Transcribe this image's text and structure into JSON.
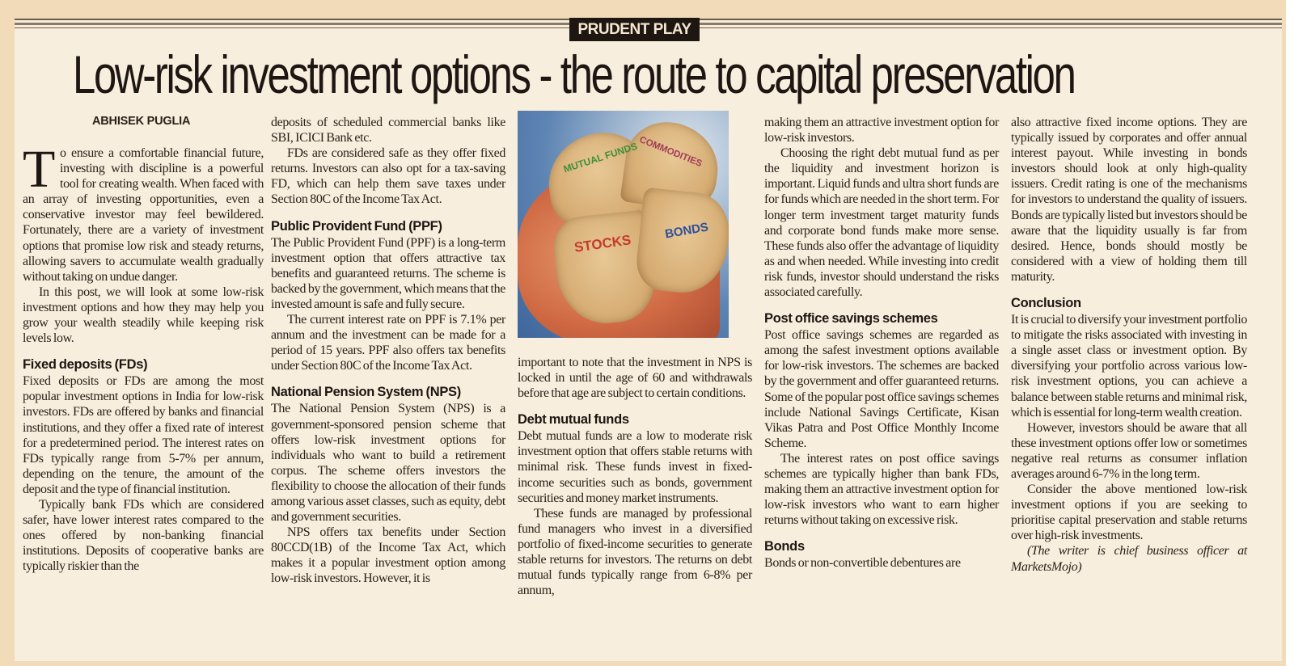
{
  "section_label": "PRUDENT PLAY",
  "headline": "Low-risk investment options - the route to capital preservation",
  "byline": "ABHISEK PUGLIA",
  "colors": {
    "background_outer": "#f1dbb8",
    "paper": "#f8eedd",
    "ink": "#2a211b",
    "kicker_bg": "#1e1611"
  },
  "photo": {
    "labels": {
      "mutual_funds": "MUTUAL FUNDS",
      "commodities": "COMMODITIES",
      "stocks": "STOCKS",
      "bonds": "BONDS"
    },
    "label_colors": {
      "mutual_funds": "#3f8f3a",
      "commodities": "#a23a5a",
      "stocks": "#c43a2c",
      "bonds": "#2d4f9a"
    }
  },
  "intro": {
    "drop_cap": "T",
    "lead": "o ensure a comfortable financial future, investing with discipline is a powerful tool for creating wealth. When faced with an array of investing opportunities, even a conservative investor may feel bewildered. Fortunately, there are a variety of investment options that promise low risk and steady returns, allowing savers to accumulate wealth gradually without taking on undue danger."
  },
  "columns": [
    [
      {
        "type": "p",
        "text": "In this post, we will look at some low-risk investment options and how they may help you grow your wealth steadily while keeping risk levels low."
      },
      {
        "type": "h",
        "text": "Fixed deposits (FDs)"
      },
      {
        "type": "p0",
        "text": "Fixed deposits or FDs are among the most popular investment options in India for low-risk investors. FDs are offered by banks and financial institutions, and they offer a fixed rate of interest for a predetermined period. The interest rates on FDs typically range from 5-7% per annum, depending on the tenure, the amount of the deposit and the type of financial institution."
      },
      {
        "type": "p",
        "text": "Typically bank FDs which are considered safer, have lower interest rates compared to the ones offered by non-banking financial institutions. Deposits of cooperative banks are typically riskier than the"
      }
    ],
    [
      {
        "type": "p0",
        "text": "deposits of scheduled commercial banks like SBI, ICICI Bank etc."
      },
      {
        "type": "p",
        "text": "FDs are considered safe as they offer fixed returns. Investors can also opt for a tax-saving FD, which can help them save taxes under Section 80C of the Income Tax Act."
      },
      {
        "type": "h",
        "text": "Public Provident Fund (PPF)"
      },
      {
        "type": "p0",
        "text": "The Public Provident Fund (PPF) is a long-term investment option that offers attractive tax benefits and guaranteed returns. The scheme is backed by the government, which means that the invested amount is safe and fully secure."
      },
      {
        "type": "p",
        "text": "The current interest rate on PPF is 7.1% per annum and the investment can be made for a period of 15 years. PPF also offers tax benefits under Section 80C of the Income Tax Act."
      },
      {
        "type": "h",
        "text": "National Pension System (NPS)"
      },
      {
        "type": "p0",
        "text": "The National Pension System (NPS) is a government-sponsored pension scheme that offers low-risk investment options for individuals who want to build a retirement corpus. The scheme offers investors the flexibility to choose the allocation of their funds among various asset classes, such as equity, debt and government securities."
      },
      {
        "type": "p",
        "text": "NPS offers tax benefits under Section 80CCD(1B) of the Income Tax Act, which makes it a popular investment option among low-risk investors. However, it is"
      }
    ],
    [
      {
        "type": "p0",
        "text": "important to note that the investment in NPS is locked in until the age of 60 and withdrawals before that age are subject to certain conditions."
      },
      {
        "type": "h",
        "text": "Debt mutual funds"
      },
      {
        "type": "p0",
        "text": "Debt mutual funds are a low to moderate risk investment option that offers stable returns with minimal risk. These funds invest in fixed-income securities such as bonds, government securities and money market instruments."
      },
      {
        "type": "p",
        "text": "These funds are managed by professional fund managers who invest in a diversified portfolio of fixed-income securities to generate stable returns for investors. The returns on debt mutual funds typically range from 6-8% per annum,"
      }
    ],
    [
      {
        "type": "p0",
        "text": "making them an attractive investment option for low-risk investors."
      },
      {
        "type": "p",
        "text": "Choosing the right debt mutual fund as per the liquidity and investment horizon is important. Liquid funds and ultra short funds are for funds which are needed in the short term. For longer term investment target maturity funds and corporate bond funds make more sense. These funds also offer the advantage of liquidity as and when needed. While investing into credit risk funds, investor should understand the risks associated carefully."
      },
      {
        "type": "h",
        "text": "Post office savings schemes"
      },
      {
        "type": "p0",
        "text": "Post office savings schemes are regarded as among the safest investment options available for low-risk investors. The schemes are backed by the government and offer guaranteed returns. Some of the popular post office savings schemes include National Savings Certificate, Kisan Vikas Patra and Post Office Monthly Income Scheme."
      },
      {
        "type": "p",
        "text": "The interest rates on post office savings schemes are typically higher than bank FDs, making them an attractive investment option for low-risk investors who want to earn higher returns without taking on excessive risk."
      },
      {
        "type": "h",
        "text": "Bonds"
      },
      {
        "type": "p0",
        "text": "Bonds or non-convertible debentures are"
      }
    ],
    [
      {
        "type": "p0",
        "text": "also attractive fixed income options. They are typically issued by corporates and offer annual interest payout. While investing in bonds investors should look at only high-quality issuers. Credit rating is one of the mechanisms for investors to understand the quality of issuers. Bonds are typically listed but investors should be aware that the liquidity usually is far from desired. Hence, bonds should mostly be considered with a view of holding them till maturity."
      },
      {
        "type": "h",
        "text": "Conclusion"
      },
      {
        "type": "p0",
        "text": "It is crucial to diversify your investment portfolio to mitigate the risks associated with investing in a single asset class or investment option. By diversifying your portfolio across various low-risk investment options, you can achieve a balance between stable returns and minimal risk, which is essential for long-term wealth creation."
      },
      {
        "type": "p",
        "text": "However, investors should be aware that all these investment options offer low or sometimes negative real returns as consumer inflation averages around 6-7% in the long term."
      },
      {
        "type": "p",
        "text": "Consider the above mentioned low-risk investment options if you are seeking to prioritise capital preservation and stable returns over high-risk investments."
      },
      {
        "type": "credit",
        "text": "(The writer is chief business officer at MarketsMojo)"
      }
    ]
  ]
}
